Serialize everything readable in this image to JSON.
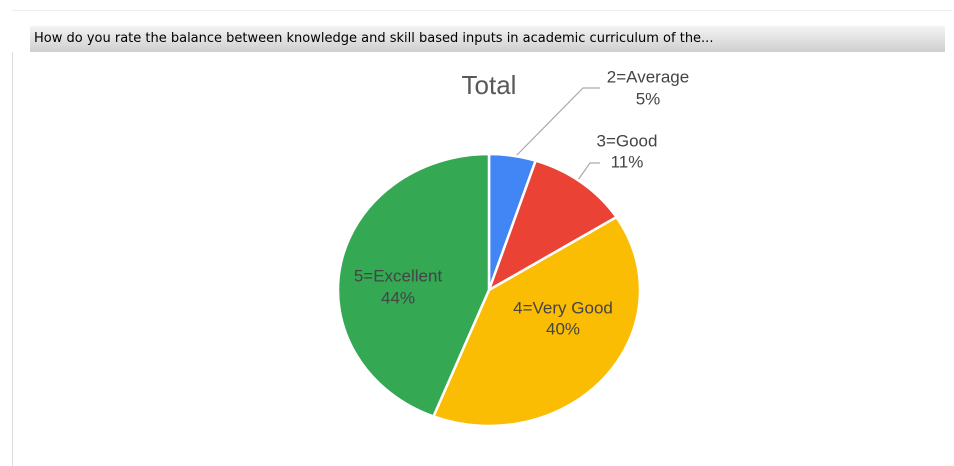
{
  "header": {
    "title": "How do you rate the balance between knowledge and skill based inputs in academic curriculum of the..."
  },
  "chart_data": {
    "type": "pie",
    "title": "Total",
    "categories": [
      "2=Average",
      "3=Good",
      "4=Very Good",
      "5=Excellent"
    ],
    "values": [
      5,
      11,
      40,
      44
    ],
    "value_labels": [
      "5%",
      "11%",
      "40%",
      "44%"
    ],
    "colors": [
      "#4285f4",
      "#ea4335",
      "#fbbc04",
      "#34a853"
    ]
  }
}
